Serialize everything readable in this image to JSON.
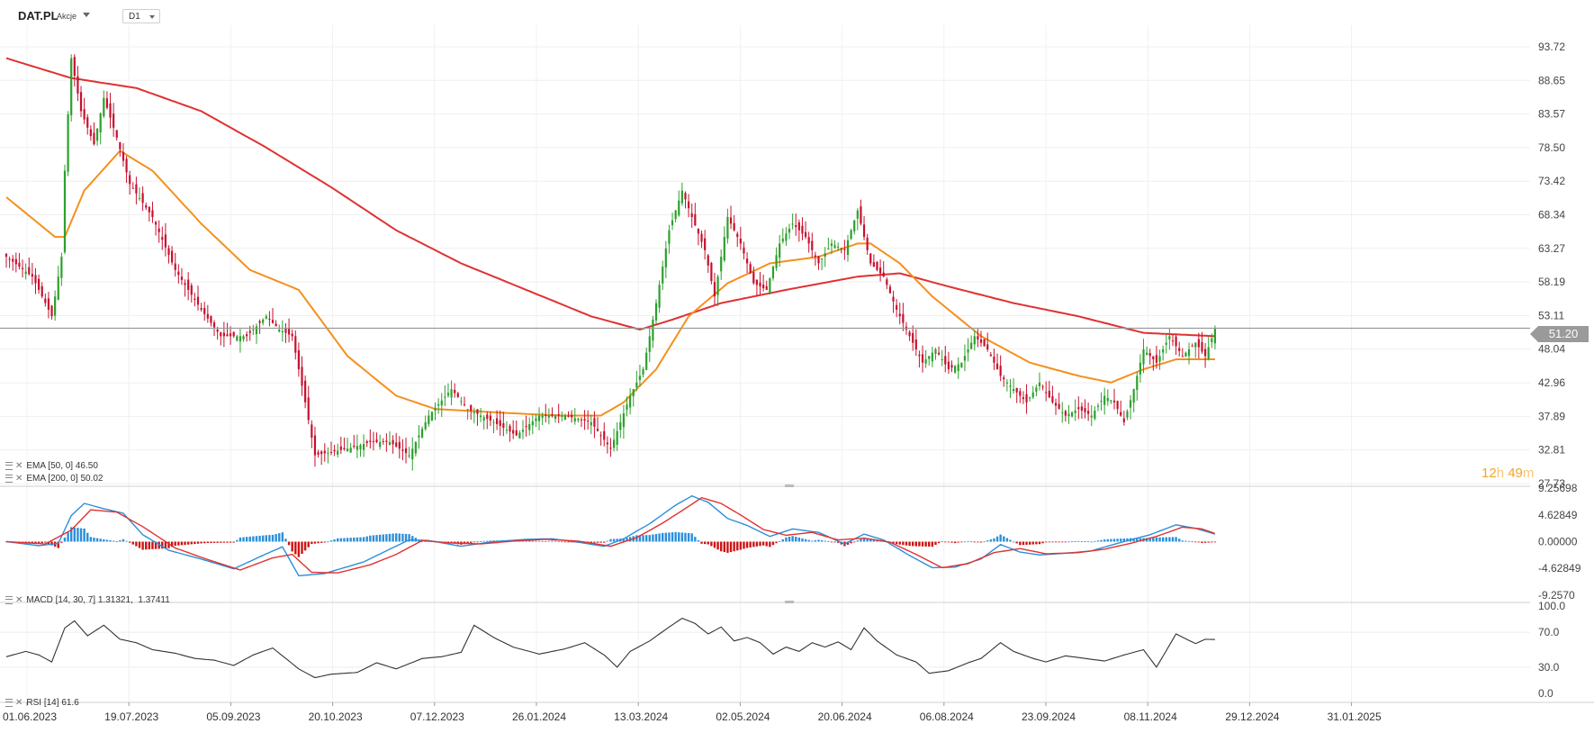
{
  "header": {
    "symbol": "DAT.PL",
    "symbol_type": "Akcje",
    "interval": "D1"
  },
  "countdown": {
    "hours": "12",
    "h_unit": "h",
    "minutes": "49",
    "m_unit": "m"
  },
  "colors": {
    "up": "#2ca02c",
    "down": "#c8102e",
    "ema50": "#f5901e",
    "ema200": "#e03131",
    "macd_line": "#2b8fd9",
    "signal_line": "#e03131",
    "hist_pos": "#2b8fd9",
    "hist_neg": "#cc1414",
    "rsi": "#333333",
    "last_price_line": "#9a9a9a"
  },
  "chart_data": [
    {
      "type": "candlestick",
      "panel": "price",
      "y_ticks": [
        "93.72",
        "88.65",
        "83.57",
        "78.50",
        "73.42",
        "68.34",
        "63.27",
        "58.19",
        "53.11",
        "48.04",
        "42.96",
        "37.89",
        "32.81",
        "27.73"
      ],
      "ylim": [
        27.73,
        93.72
      ],
      "last_price": 51.2,
      "last_price_label": "51.20",
      "close_keyframes": [
        [
          0,
          62
        ],
        [
          8,
          59
        ],
        [
          14,
          53
        ],
        [
          17,
          62
        ],
        [
          18,
          75
        ],
        [
          20,
          92
        ],
        [
          23,
          84
        ],
        [
          27,
          79
        ],
        [
          30,
          86
        ],
        [
          34,
          80
        ],
        [
          38,
          73
        ],
        [
          45,
          68
        ],
        [
          52,
          60
        ],
        [
          60,
          54
        ],
        [
          66,
          50
        ],
        [
          74,
          50
        ],
        [
          80,
          53
        ],
        [
          84,
          51
        ],
        [
          88,
          50
        ],
        [
          92,
          40
        ],
        [
          95,
          32
        ],
        [
          105,
          33
        ],
        [
          112,
          34
        ],
        [
          118,
          34
        ],
        [
          124,
          32
        ],
        [
          130,
          38
        ],
        [
          137,
          42
        ],
        [
          142,
          39
        ],
        [
          150,
          37
        ],
        [
          157,
          35
        ],
        [
          164,
          38
        ],
        [
          172,
          38
        ],
        [
          180,
          37
        ],
        [
          186,
          33
        ],
        [
          192,
          41
        ],
        [
          196,
          45
        ],
        [
          200,
          55
        ],
        [
          204,
          66
        ],
        [
          208,
          72
        ],
        [
          211,
          68
        ],
        [
          215,
          63
        ],
        [
          218,
          56
        ],
        [
          222,
          68
        ],
        [
          226,
          64
        ],
        [
          230,
          58
        ],
        [
          234,
          57
        ],
        [
          238,
          64
        ],
        [
          242,
          67
        ],
        [
          246,
          65
        ],
        [
          250,
          61
        ],
        [
          254,
          64
        ],
        [
          258,
          63
        ],
        [
          262,
          69
        ],
        [
          266,
          61
        ],
        [
          270,
          59
        ],
        [
          274,
          54
        ],
        [
          278,
          50
        ],
        [
          282,
          46
        ],
        [
          286,
          48
        ],
        [
          290,
          45
        ],
        [
          294,
          46
        ],
        [
          298,
          50
        ],
        [
          302,
          48
        ],
        [
          306,
          44
        ],
        [
          310,
          42
        ],
        [
          314,
          40
        ],
        [
          318,
          43
        ],
        [
          322,
          40
        ],
        [
          326,
          38
        ],
        [
          330,
          39
        ],
        [
          334,
          38
        ],
        [
          338,
          41
        ],
        [
          341,
          40
        ],
        [
          344,
          37
        ],
        [
          347,
          42
        ],
        [
          350,
          48
        ],
        [
          354,
          46
        ],
        [
          358,
          50
        ],
        [
          362,
          47
        ],
        [
          366,
          49
        ],
        [
          369,
          47
        ],
        [
          372,
          51
        ]
      ],
      "indicators": [
        {
          "name": "EMA [50, 0]",
          "value": "46.50",
          "keyframes": [
            [
              0,
              71
            ],
            [
              15,
              65
            ],
            [
              18,
              65
            ],
            [
              24,
              72
            ],
            [
              35,
              78
            ],
            [
              45,
              75
            ],
            [
              60,
              67
            ],
            [
              75,
              60
            ],
            [
              90,
              57
            ],
            [
              105,
              47
            ],
            [
              120,
              41
            ],
            [
              132,
              39
            ],
            [
              150,
              38.5
            ],
            [
              170,
              38
            ],
            [
              183,
              38
            ],
            [
              190,
              40
            ],
            [
              200,
              45
            ],
            [
              210,
              53
            ],
            [
              222,
              58
            ],
            [
              235,
              61
            ],
            [
              250,
              62
            ],
            [
              262,
              64
            ],
            [
              266,
              64
            ],
            [
              275,
              61
            ],
            [
              285,
              56
            ],
            [
              300,
              50
            ],
            [
              315,
              46
            ],
            [
              330,
              44
            ],
            [
              340,
              43
            ],
            [
              350,
              45
            ],
            [
              360,
              46.5
            ],
            [
              372,
              46.5
            ]
          ]
        },
        {
          "name": "EMA [200, 0]",
          "value": "50.02",
          "keyframes": [
            [
              0,
              92
            ],
            [
              20,
              89
            ],
            [
              40,
              87.5
            ],
            [
              60,
              84
            ],
            [
              80,
              78.5
            ],
            [
              100,
              72.5
            ],
            [
              120,
              66
            ],
            [
              140,
              61
            ],
            [
              160,
              57
            ],
            [
              180,
              53
            ],
            [
              195,
              51
            ],
            [
              205,
              52.5
            ],
            [
              220,
              55
            ],
            [
              240,
              57
            ],
            [
              262,
              59
            ],
            [
              275,
              59.5
            ],
            [
              290,
              57.5
            ],
            [
              310,
              55
            ],
            [
              330,
              53
            ],
            [
              350,
              50.5
            ],
            [
              372,
              50
            ]
          ]
        }
      ]
    },
    {
      "type": "macd",
      "panel": "macd",
      "name": "MACD [14, 30, 7]",
      "value_macd": "1.31321",
      "value_signal": "1.37411",
      "y_ticks": [
        "9.25698",
        "4.62849",
        "0.00000",
        "-4.62849",
        "-9.2570"
      ],
      "ylim": [
        -9.257,
        9.257
      ],
      "macd_keyframes": [
        [
          0,
          0
        ],
        [
          10,
          -0.7
        ],
        [
          16,
          -0.3
        ],
        [
          20,
          4.5
        ],
        [
          24,
          6.6
        ],
        [
          30,
          5.7
        ],
        [
          36,
          4.9
        ],
        [
          42,
          1.2
        ],
        [
          50,
          -1.5
        ],
        [
          60,
          -3
        ],
        [
          70,
          -4.7
        ],
        [
          80,
          -2.1
        ],
        [
          85,
          -0.9
        ],
        [
          90,
          -5.9
        ],
        [
          98,
          -5.5
        ],
        [
          110,
          -3.5
        ],
        [
          118,
          -1.3
        ],
        [
          124,
          0.3
        ],
        [
          130,
          0.2
        ],
        [
          140,
          -0.8
        ],
        [
          150,
          0
        ],
        [
          160,
          0.4
        ],
        [
          168,
          0.5
        ],
        [
          176,
          -0.1
        ],
        [
          184,
          -0.8
        ],
        [
          190,
          0.5
        ],
        [
          198,
          3.1
        ],
        [
          206,
          6.3
        ],
        [
          211,
          7.9
        ],
        [
          216,
          6.8
        ],
        [
          222,
          4
        ],
        [
          228,
          2.8
        ],
        [
          235,
          0.9
        ],
        [
          242,
          2.2
        ],
        [
          250,
          1.6
        ],
        [
          258,
          -0.4
        ],
        [
          264,
          1.3
        ],
        [
          270,
          0.3
        ],
        [
          278,
          -2.4
        ],
        [
          285,
          -4.5
        ],
        [
          292,
          -4.4
        ],
        [
          300,
          -3
        ],
        [
          306,
          -0.5
        ],
        [
          312,
          -1.8
        ],
        [
          318,
          -2.3
        ],
        [
          326,
          -2
        ],
        [
          334,
          -1.6
        ],
        [
          340,
          -0.6
        ],
        [
          346,
          0.3
        ],
        [
          352,
          1.2
        ],
        [
          360,
          2.9
        ],
        [
          366,
          2.3
        ],
        [
          372,
          1.3
        ]
      ],
      "signal_keyframes": [
        [
          0,
          0
        ],
        [
          12,
          -0.4
        ],
        [
          20,
          2
        ],
        [
          26,
          5.5
        ],
        [
          34,
          5.1
        ],
        [
          42,
          2.6
        ],
        [
          52,
          -1.1
        ],
        [
          62,
          -3.1
        ],
        [
          72,
          -4.9
        ],
        [
          82,
          -2.8
        ],
        [
          88,
          -2.2
        ],
        [
          94,
          -5.3
        ],
        [
          102,
          -5.4
        ],
        [
          112,
          -4
        ],
        [
          120,
          -2.2
        ],
        [
          128,
          0.2
        ],
        [
          136,
          -0.2
        ],
        [
          146,
          -0.4
        ],
        [
          156,
          0.1
        ],
        [
          166,
          0.4
        ],
        [
          176,
          0.1
        ],
        [
          186,
          -0.8
        ],
        [
          194,
          0.7
        ],
        [
          202,
          3.2
        ],
        [
          210,
          6.1
        ],
        [
          214,
          7.6
        ],
        [
          220,
          6.6
        ],
        [
          226,
          4.6
        ],
        [
          233,
          2.1
        ],
        [
          240,
          1.1
        ],
        [
          248,
          1.6
        ],
        [
          256,
          0.3
        ],
        [
          264,
          0.6
        ],
        [
          272,
          -0.1
        ],
        [
          280,
          -2.2
        ],
        [
          288,
          -4.5
        ],
        [
          296,
          -3.8
        ],
        [
          304,
          -1.9
        ],
        [
          312,
          -1.2
        ],
        [
          320,
          -2.1
        ],
        [
          330,
          -1.9
        ],
        [
          338,
          -1.3
        ],
        [
          346,
          -0.3
        ],
        [
          354,
          0.9
        ],
        [
          362,
          2.5
        ],
        [
          368,
          2.2
        ],
        [
          372,
          1.4
        ]
      ]
    },
    {
      "type": "line",
      "panel": "rsi",
      "name": "RSI [14]",
      "value": "61.6",
      "y_ticks": [
        "100.0",
        "70.0",
        "30.0",
        "0.0"
      ],
      "ylim": [
        0,
        100
      ],
      "keyframes": [
        [
          0,
          42
        ],
        [
          6,
          48
        ],
        [
          10,
          44
        ],
        [
          14,
          36
        ],
        [
          18,
          75
        ],
        [
          21,
          83
        ],
        [
          25,
          66
        ],
        [
          30,
          78
        ],
        [
          35,
          62
        ],
        [
          40,
          58
        ],
        [
          45,
          50
        ],
        [
          52,
          46
        ],
        [
          58,
          40
        ],
        [
          64,
          38
        ],
        [
          70,
          32
        ],
        [
          76,
          44
        ],
        [
          82,
          52
        ],
        [
          86,
          40
        ],
        [
          90,
          28
        ],
        [
          95,
          18
        ],
        [
          100,
          22
        ],
        [
          108,
          24
        ],
        [
          114,
          35
        ],
        [
          120,
          28
        ],
        [
          128,
          40
        ],
        [
          134,
          42
        ],
        [
          140,
          47
        ],
        [
          144,
          78
        ],
        [
          150,
          64
        ],
        [
          156,
          53
        ],
        [
          164,
          45
        ],
        [
          172,
          51
        ],
        [
          178,
          58
        ],
        [
          184,
          44
        ],
        [
          188,
          30
        ],
        [
          192,
          48
        ],
        [
          198,
          60
        ],
        [
          204,
          76
        ],
        [
          208,
          86
        ],
        [
          212,
          80
        ],
        [
          216,
          68
        ],
        [
          220,
          76
        ],
        [
          224,
          60
        ],
        [
          228,
          64
        ],
        [
          232,
          58
        ],
        [
          236,
          45
        ],
        [
          240,
          53
        ],
        [
          244,
          48
        ],
        [
          248,
          58
        ],
        [
          252,
          53
        ],
        [
          256,
          59
        ],
        [
          260,
          50
        ],
        [
          264,
          75
        ],
        [
          268,
          60
        ],
        [
          274,
          44
        ],
        [
          280,
          36
        ],
        [
          284,
          23
        ],
        [
          290,
          26
        ],
        [
          296,
          35
        ],
        [
          300,
          40
        ],
        [
          306,
          58
        ],
        [
          310,
          48
        ],
        [
          316,
          40
        ],
        [
          320,
          36
        ],
        [
          326,
          43
        ],
        [
          332,
          40
        ],
        [
          338,
          37
        ],
        [
          344,
          44
        ],
        [
          350,
          50
        ],
        [
          354,
          30
        ],
        [
          360,
          68
        ],
        [
          366,
          57
        ],
        [
          369,
          62
        ],
        [
          372,
          61.6
        ]
      ]
    }
  ],
  "x_ticks": [
    "01.06.2023",
    "19.07.2023",
    "05.09.2023",
    "20.10.2023",
    "07.12.2023",
    "26.01.2024",
    "13.03.2024",
    "02.05.2024",
    "20.06.2024",
    "06.08.2024",
    "23.09.2024",
    "08.11.2024",
    "29.12.2024",
    "31.01.2025"
  ]
}
